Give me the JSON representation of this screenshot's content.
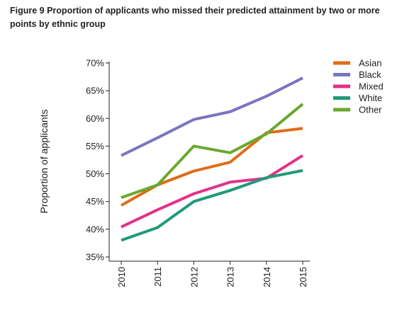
{
  "figure": {
    "title": "Figure 9 Proportion of applicants who missed their predicted attainment by two or more points by ethnic group"
  },
  "chart_data": {
    "type": "line",
    "title": "Figure 9 Proportion of applicants who missed their predicted attainment by two or more points by ethnic group",
    "xlabel": "",
    "ylabel": "Proportion of applicants",
    "categories": [
      "2010",
      "2011",
      "2012",
      "2013",
      "2014",
      "2015"
    ],
    "y_ticks": [
      "35%",
      "40%",
      "45%",
      "50%",
      "55%",
      "60%",
      "65%",
      "70%"
    ],
    "ylim": [
      35,
      70
    ],
    "y_unit": "%",
    "grid": false,
    "legend_position": "top-right",
    "series": [
      {
        "name": "Asian",
        "color": "#e06c1a",
        "values": [
          44.3,
          48.0,
          50.5,
          52.1,
          57.4,
          58.2
        ]
      },
      {
        "name": "Black",
        "color": "#7b74bf",
        "values": [
          53.3,
          56.5,
          59.8,
          61.2,
          64.0,
          67.3
        ]
      },
      {
        "name": "Mixed",
        "color": "#e2318c",
        "values": [
          40.4,
          43.5,
          46.4,
          48.5,
          49.2,
          53.3
        ]
      },
      {
        "name": "White",
        "color": "#209a7b",
        "values": [
          38.0,
          40.3,
          45.0,
          47.0,
          49.3,
          50.6
        ]
      },
      {
        "name": "Other",
        "color": "#6aa82d",
        "values": [
          45.7,
          48.0,
          55.0,
          53.8,
          57.2,
          62.6
        ]
      }
    ]
  }
}
